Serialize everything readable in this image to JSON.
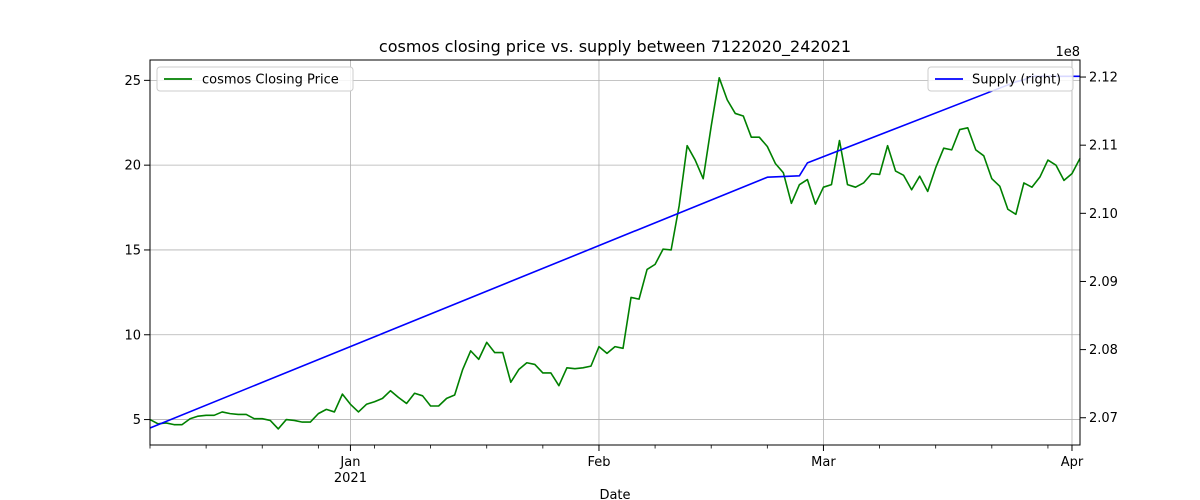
{
  "chart_data": {
    "type": "line",
    "title": "cosmos closing price vs. supply between 7122020_242021",
    "xlabel": "Date",
    "ylabel": "",
    "ylabel_right": "",
    "right_axis_multiplier": "1e8",
    "grid": true,
    "x_range": [
      "2020-12-07",
      "2021-04-02"
    ],
    "ylim": [
      3.5,
      26.2
    ],
    "ylim_right": [
      2.066,
      2.1225
    ],
    "x_month_ticks": [
      {
        "date": "2021-01-01",
        "label": "Jan",
        "sublabel": "2021"
      },
      {
        "date": "2021-02-01",
        "label": "Feb",
        "sublabel": ""
      },
      {
        "date": "2021-03-01",
        "label": "Mar",
        "sublabel": ""
      },
      {
        "date": "2021-04-01",
        "label": "Apr",
        "sublabel": ""
      }
    ],
    "x_minor_ticks": [
      "2020-12-07",
      "2020-12-14",
      "2020-12-21",
      "2020-12-28",
      "2021-01-04",
      "2021-01-11",
      "2021-01-18",
      "2021-01-25",
      "2021-02-08",
      "2021-02-15",
      "2021-02-22",
      "2021-03-08",
      "2021-03-15",
      "2021-03-22",
      "2021-03-29"
    ],
    "y_ticks": [
      5,
      10,
      15,
      20,
      25
    ],
    "y_ticks_right": [
      2.07,
      2.08,
      2.09,
      2.1,
      2.11,
      2.12
    ],
    "legend_left": {
      "placement": "upper-left"
    },
    "legend_right": {
      "placement": "upper-right"
    },
    "series": [
      {
        "name": "cosmos Closing Price",
        "axis": "left",
        "color": "#008000",
        "x": [
          "2020-12-07",
          "2020-12-08",
          "2020-12-09",
          "2020-12-10",
          "2020-12-11",
          "2020-12-12",
          "2020-12-13",
          "2020-12-14",
          "2020-12-15",
          "2020-12-16",
          "2020-12-17",
          "2020-12-18",
          "2020-12-19",
          "2020-12-20",
          "2020-12-21",
          "2020-12-22",
          "2020-12-23",
          "2020-12-24",
          "2020-12-25",
          "2020-12-26",
          "2020-12-27",
          "2020-12-28",
          "2020-12-29",
          "2020-12-30",
          "2020-12-31",
          "2021-01-01",
          "2021-01-02",
          "2021-01-03",
          "2021-01-04",
          "2021-01-05",
          "2021-01-06",
          "2021-01-07",
          "2021-01-08",
          "2021-01-09",
          "2021-01-10",
          "2021-01-11",
          "2021-01-12",
          "2021-01-13",
          "2021-01-14",
          "2021-01-15",
          "2021-01-16",
          "2021-01-17",
          "2021-01-18",
          "2021-01-19",
          "2021-01-20",
          "2021-01-21",
          "2021-01-22",
          "2021-01-23",
          "2021-01-24",
          "2021-01-25",
          "2021-01-26",
          "2021-01-27",
          "2021-01-28",
          "2021-01-29",
          "2021-01-30",
          "2021-01-31",
          "2021-02-01",
          "2021-02-02",
          "2021-02-03",
          "2021-02-04",
          "2021-02-05",
          "2021-02-06",
          "2021-02-07",
          "2021-02-08",
          "2021-02-09",
          "2021-02-10",
          "2021-02-11",
          "2021-02-12",
          "2021-02-13",
          "2021-02-14",
          "2021-02-15",
          "2021-02-16",
          "2021-02-17",
          "2021-02-18",
          "2021-02-19",
          "2021-02-20",
          "2021-02-21",
          "2021-02-22",
          "2021-02-23",
          "2021-02-24",
          "2021-02-25",
          "2021-02-26",
          "2021-02-27",
          "2021-02-28",
          "2021-03-01",
          "2021-03-02",
          "2021-03-03",
          "2021-03-04",
          "2021-03-05",
          "2021-03-06",
          "2021-03-07",
          "2021-03-08",
          "2021-03-09",
          "2021-03-10",
          "2021-03-11",
          "2021-03-12",
          "2021-03-13",
          "2021-03-14",
          "2021-03-15",
          "2021-03-16",
          "2021-03-17",
          "2021-03-18",
          "2021-03-19",
          "2021-03-20",
          "2021-03-21",
          "2021-03-22",
          "2021-03-23",
          "2021-03-24",
          "2021-03-25",
          "2021-03-26",
          "2021-03-27",
          "2021-03-28",
          "2021-03-29",
          "2021-03-30",
          "2021-03-31",
          "2021-04-01",
          "2021-04-02"
        ],
        "values": [
          5.0,
          4.75,
          4.8,
          4.7,
          4.7,
          5.05,
          5.2,
          5.25,
          5.25,
          5.45,
          5.35,
          5.3,
          5.3,
          5.05,
          5.05,
          4.95,
          4.45,
          5.0,
          4.95,
          4.85,
          4.85,
          5.35,
          5.6,
          5.45,
          6.5,
          5.9,
          5.45,
          5.9,
          6.05,
          6.25,
          6.7,
          6.3,
          5.95,
          6.55,
          6.4,
          5.8,
          5.8,
          6.25,
          6.45,
          7.95,
          9.05,
          8.55,
          9.55,
          8.95,
          8.95,
          7.2,
          7.95,
          8.35,
          8.25,
          7.75,
          7.75,
          7.0,
          8.05,
          8.0,
          8.05,
          8.15,
          9.3,
          8.9,
          9.3,
          9.2,
          12.2,
          12.1,
          13.85,
          14.15,
          15.05,
          15.0,
          17.6,
          21.15,
          20.3,
          19.2,
          22.3,
          25.15,
          23.85,
          23.05,
          22.9,
          21.65,
          21.65,
          21.1,
          20.1,
          19.55,
          17.75,
          18.85,
          19.15,
          17.7,
          18.7,
          18.85,
          21.45,
          18.85,
          18.7,
          18.95,
          19.5,
          19.45,
          21.15,
          19.65,
          19.4,
          18.55,
          19.35,
          18.45,
          19.85,
          21.0,
          20.9,
          22.1,
          22.2,
          20.9,
          20.55,
          19.2,
          18.75,
          17.4,
          17.1,
          18.95,
          18.7,
          19.3,
          20.3,
          20.0,
          19.1,
          19.5,
          20.4
        ]
      },
      {
        "name": "Supply (right)",
        "axis": "right",
        "color": "#0000ff",
        "x": [
          "2020-12-07",
          "2021-02-22",
          "2021-02-26",
          "2021-02-27",
          "2021-03-25",
          "2021-03-26",
          "2021-03-27",
          "2021-04-02"
        ],
        "values": [
          2.0685,
          2.1053,
          2.1055,
          2.1074,
          2.1193,
          2.1196,
          2.1201,
          2.1201
        ]
      }
    ]
  }
}
